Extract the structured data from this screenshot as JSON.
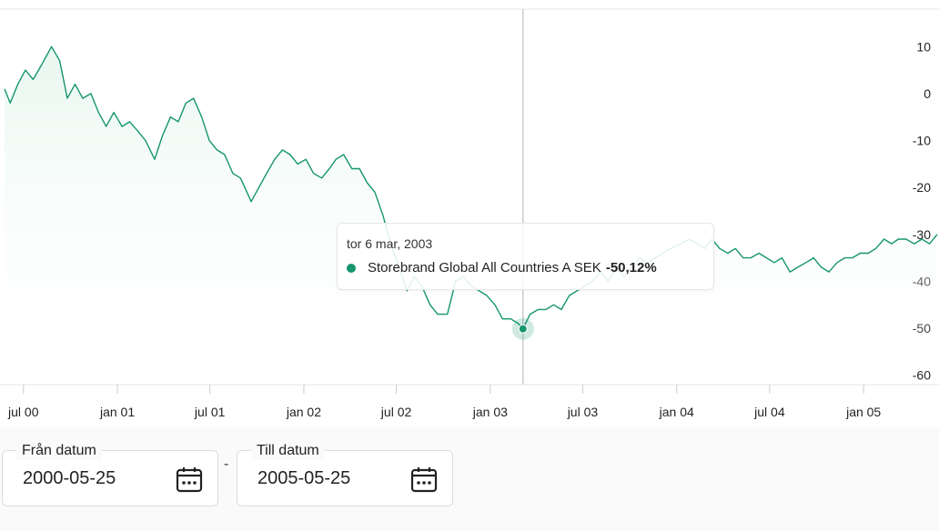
{
  "colors": {
    "series": "#15956e",
    "grid": "#e6e6e6",
    "crosshair": "#cccccc",
    "fill_top": "#e9f7f0"
  },
  "chart_data": {
    "type": "area",
    "x_range": [
      "2000-05-25",
      "2005-05-25"
    ],
    "ylim": [
      -62,
      18
    ],
    "yticks": [
      10,
      0,
      -10,
      -20,
      -30,
      -40,
      -50,
      -60
    ],
    "ytick_labels": [
      "10",
      "0",
      "-10",
      "-20",
      "-30",
      "-40",
      "-50",
      "-60"
    ],
    "xticks": [
      {
        "date": "2000-07-01",
        "label": "jul 00"
      },
      {
        "date": "2001-01-01",
        "label": "jan 01"
      },
      {
        "date": "2001-07-01",
        "label": "jul 01"
      },
      {
        "date": "2002-01-01",
        "label": "jan 02"
      },
      {
        "date": "2002-07-01",
        "label": "jul 02"
      },
      {
        "date": "2003-01-01",
        "label": "jan 03"
      },
      {
        "date": "2003-07-01",
        "label": "jul 03"
      },
      {
        "date": "2004-01-01",
        "label": "jan 04"
      },
      {
        "date": "2004-07-01",
        "label": "jul 04"
      },
      {
        "date": "2005-01-01",
        "label": "jan 05"
      }
    ],
    "series": [
      {
        "name": "Storebrand Global All Countries A SEK",
        "points": [
          [
            "2000-05-25",
            1.0
          ],
          [
            "2000-06-05",
            -2.0
          ],
          [
            "2000-06-20",
            2.0
          ],
          [
            "2000-07-05",
            5.0
          ],
          [
            "2000-07-20",
            3.0
          ],
          [
            "2000-08-05",
            6.0
          ],
          [
            "2000-08-25",
            10.0
          ],
          [
            "2000-09-10",
            7.0
          ],
          [
            "2000-09-25",
            -1.0
          ],
          [
            "2000-10-10",
            2.0
          ],
          [
            "2000-10-25",
            -1.0
          ],
          [
            "2000-11-10",
            0.0
          ],
          [
            "2000-11-25",
            -4.0
          ],
          [
            "2000-12-10",
            -7.0
          ],
          [
            "2000-12-25",
            -4.0
          ],
          [
            "2001-01-10",
            -7.0
          ],
          [
            "2001-01-25",
            -6.0
          ],
          [
            "2001-02-10",
            -8.0
          ],
          [
            "2001-02-25",
            -10.0
          ],
          [
            "2001-03-15",
            -14.0
          ],
          [
            "2001-03-30",
            -9.0
          ],
          [
            "2001-04-15",
            -5.0
          ],
          [
            "2001-04-30",
            -6.0
          ],
          [
            "2001-05-15",
            -2.0
          ],
          [
            "2001-05-30",
            -1.0
          ],
          [
            "2001-06-15",
            -5.0
          ],
          [
            "2001-06-30",
            -10.0
          ],
          [
            "2001-07-15",
            -12.0
          ],
          [
            "2001-07-30",
            -13.0
          ],
          [
            "2001-08-15",
            -17.0
          ],
          [
            "2001-08-30",
            -18.0
          ],
          [
            "2001-09-20",
            -23.0
          ],
          [
            "2001-10-05",
            -20.0
          ],
          [
            "2001-10-20",
            -17.0
          ],
          [
            "2001-11-05",
            -14.0
          ],
          [
            "2001-11-20",
            -12.0
          ],
          [
            "2001-12-05",
            -13.0
          ],
          [
            "2001-12-20",
            -15.0
          ],
          [
            "2002-01-05",
            -14.0
          ],
          [
            "2002-01-20",
            -17.0
          ],
          [
            "2002-02-05",
            -18.0
          ],
          [
            "2002-02-20",
            -16.0
          ],
          [
            "2002-03-05",
            -14.0
          ],
          [
            "2002-03-20",
            -13.0
          ],
          [
            "2002-04-05",
            -16.0
          ],
          [
            "2002-04-20",
            -16.0
          ],
          [
            "2002-05-05",
            -19.0
          ],
          [
            "2002-05-20",
            -21.0
          ],
          [
            "2002-06-05",
            -26.0
          ],
          [
            "2002-06-20",
            -32.0
          ],
          [
            "2002-07-10",
            -38.0
          ],
          [
            "2002-07-22",
            -42.0
          ],
          [
            "2002-08-05",
            -39.0
          ],
          [
            "2002-08-20",
            -41.0
          ],
          [
            "2002-09-05",
            -45.0
          ],
          [
            "2002-09-20",
            -47.0
          ],
          [
            "2002-10-09",
            -47.0
          ],
          [
            "2002-10-25",
            -40.0
          ],
          [
            "2002-11-10",
            -39.0
          ],
          [
            "2002-11-25",
            -41.0
          ],
          [
            "2002-12-10",
            -42.0
          ],
          [
            "2002-12-25",
            -43.0
          ],
          [
            "2003-01-10",
            -45.0
          ],
          [
            "2003-01-25",
            -48.0
          ],
          [
            "2003-02-10",
            -48.0
          ],
          [
            "2003-02-25",
            -49.0
          ],
          [
            "2003-03-06",
            -50.12
          ],
          [
            "2003-03-20",
            -47.0
          ],
          [
            "2003-04-05",
            -46.0
          ],
          [
            "2003-04-20",
            -46.0
          ],
          [
            "2003-05-05",
            -45.0
          ],
          [
            "2003-05-20",
            -46.0
          ],
          [
            "2003-06-05",
            -43.0
          ],
          [
            "2003-06-20",
            -42.0
          ],
          [
            "2003-07-05",
            -41.0
          ],
          [
            "2003-07-20",
            -40.0
          ],
          [
            "2003-08-05",
            -38.0
          ],
          [
            "2003-08-20",
            -40.0
          ],
          [
            "2003-09-05",
            -37.0
          ],
          [
            "2003-09-20",
            -39.0
          ],
          [
            "2003-10-05",
            -37.0
          ],
          [
            "2003-10-20",
            -35.0
          ],
          [
            "2003-11-05",
            -36.0
          ],
          [
            "2003-11-20",
            -35.0
          ],
          [
            "2003-12-05",
            -34.0
          ],
          [
            "2003-12-20",
            -33.0
          ],
          [
            "2004-01-10",
            -32.0
          ],
          [
            "2004-01-25",
            -31.0
          ],
          [
            "2004-02-10",
            -32.0
          ],
          [
            "2004-02-25",
            -33.0
          ],
          [
            "2004-03-10",
            -31.0
          ],
          [
            "2004-03-25",
            -33.0
          ],
          [
            "2004-04-10",
            -34.0
          ],
          [
            "2004-04-25",
            -33.0
          ],
          [
            "2004-05-10",
            -35.0
          ],
          [
            "2004-05-25",
            -35.0
          ],
          [
            "2004-06-10",
            -34.0
          ],
          [
            "2004-06-25",
            -35.0
          ],
          [
            "2004-07-10",
            -36.0
          ],
          [
            "2004-07-25",
            -35.0
          ],
          [
            "2004-08-10",
            -38.0
          ],
          [
            "2004-08-25",
            -37.0
          ],
          [
            "2004-09-10",
            -36.0
          ],
          [
            "2004-09-25",
            -35.0
          ],
          [
            "2004-10-10",
            -37.0
          ],
          [
            "2004-10-25",
            -38.0
          ],
          [
            "2004-11-10",
            -36.0
          ],
          [
            "2004-11-25",
            -35.0
          ],
          [
            "2004-12-10",
            -35.0
          ],
          [
            "2004-12-25",
            -34.0
          ],
          [
            "2005-01-10",
            -34.0
          ],
          [
            "2005-01-25",
            -33.0
          ],
          [
            "2005-02-10",
            -31.0
          ],
          [
            "2005-02-25",
            -32.0
          ],
          [
            "2005-03-10",
            -31.0
          ],
          [
            "2005-03-25",
            -31.0
          ],
          [
            "2005-04-10",
            -32.0
          ],
          [
            "2005-04-25",
            -31.0
          ],
          [
            "2005-05-10",
            -32.0
          ],
          [
            "2005-05-25",
            -30.0
          ]
        ]
      }
    ],
    "tooltip": {
      "date_label": "tor 6 mar, 2003",
      "hover_date": "2003-03-06",
      "series_name": "Storebrand Global All Countries A SEK",
      "value_label": "-50,12%",
      "value": -50.12
    },
    "grid": true
  },
  "filters": {
    "from": {
      "label": "Från datum",
      "value": "2000-05-25",
      "icon": "calendar-icon"
    },
    "separator": "-",
    "to": {
      "label": "Till datum",
      "value": "2005-05-25",
      "icon": "calendar-icon"
    }
  }
}
